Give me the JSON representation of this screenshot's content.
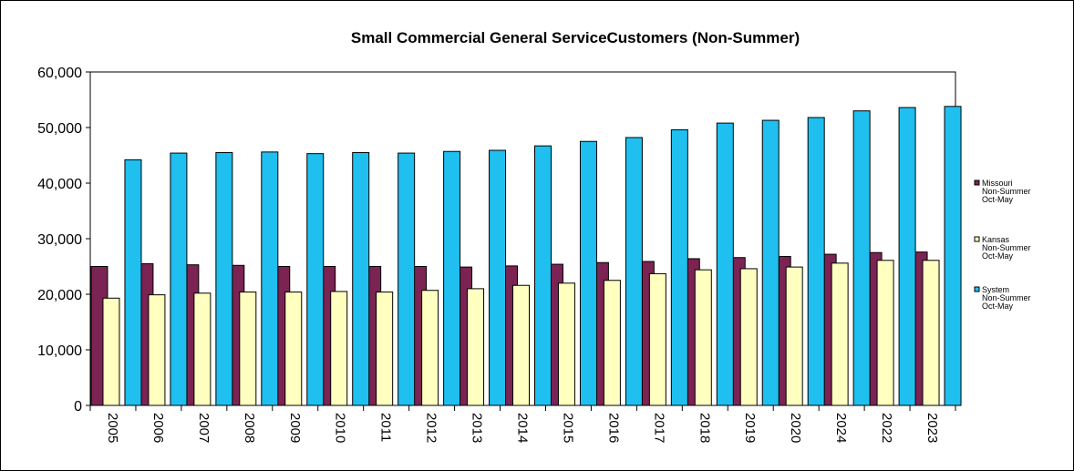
{
  "chart_data": {
    "type": "bar",
    "title": "Small Commercial General ServiceCustomers (Non-Summer)",
    "xlabel": "",
    "ylabel": "",
    "ylim": [
      0,
      60000
    ],
    "yticks": [
      "0",
      "10,000",
      "20,000",
      "30,000",
      "40,000",
      "50,000",
      "60,000"
    ],
    "ytick_values": [
      0,
      10000,
      20000,
      30000,
      40000,
      50000,
      60000
    ],
    "grid": false,
    "legend_position": "right",
    "categories": [
      "2005",
      "2006",
      "2007",
      "2008",
      "2009",
      "2010",
      "2011",
      "2012",
      "2013",
      "2014",
      "2015",
      "2016",
      "2017",
      "2018",
      "2019",
      "2020",
      "2024",
      "2022",
      "2023"
    ],
    "series": [
      {
        "name": "Missouri Non-Summer Oct-May",
        "legend_lines": [
          "Missouri",
          "Non-Summer",
          "Oct-May"
        ],
        "color": "#7b2352",
        "values": [
          25000,
          25500,
          25300,
          25200,
          25000,
          25000,
          25000,
          25000,
          24900,
          25100,
          25400,
          25700,
          25900,
          26400,
          26600,
          26800,
          27200,
          27500,
          27600
        ]
      },
      {
        "name": "Kansas Non-Summer Oct-May",
        "legend_lines": [
          "Kansas",
          "Non-Summer",
          "Oct-May"
        ],
        "color": "#ffffc0",
        "values": [
          19300,
          19900,
          20200,
          20400,
          20400,
          20500,
          20400,
          20700,
          21000,
          21600,
          22000,
          22500,
          23700,
          24400,
          24600,
          24900,
          25600,
          26100,
          26100
        ]
      },
      {
        "name": "System Non-Summer Oct-May",
        "legend_lines": [
          "System",
          "Non-Summer",
          "Oct-May"
        ],
        "color": "#1fbfef",
        "values": [
          44200,
          45400,
          45500,
          45600,
          45300,
          45500,
          45400,
          45700,
          45900,
          46700,
          47500,
          48200,
          49600,
          50800,
          51300,
          51800,
          53000,
          53600,
          53800
        ]
      }
    ]
  }
}
